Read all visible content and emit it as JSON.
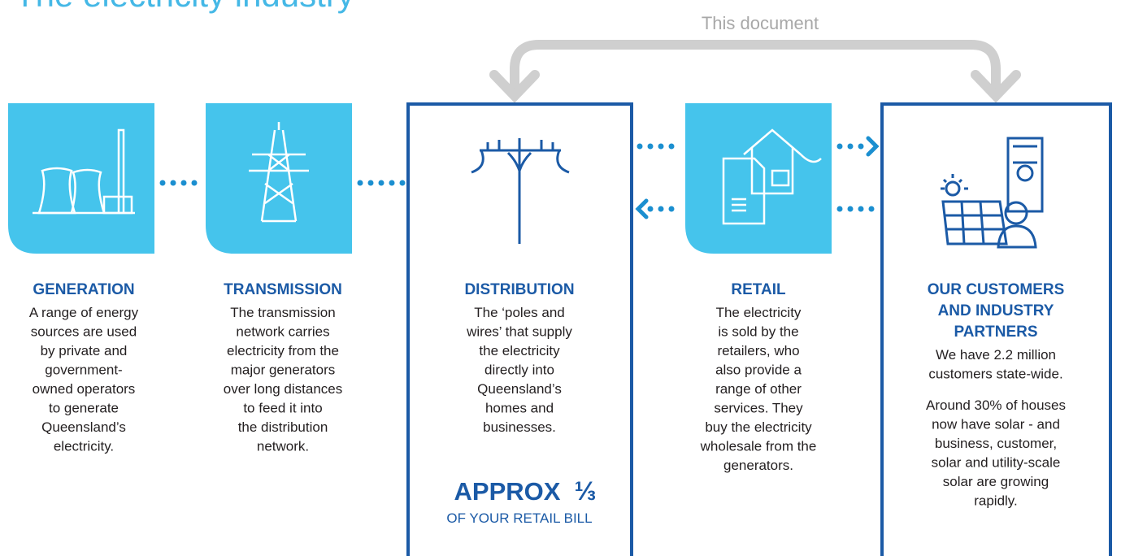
{
  "title": "The electricity industry",
  "scope_label": "This document",
  "stages": [
    {
      "heading": [
        "GENERATION"
      ],
      "paragraphs": [
        [
          "A range of energy",
          "sources are used",
          "by private and",
          "government-",
          "owned operators",
          "to generate",
          "Queensland’s",
          "electricity."
        ]
      ]
    },
    {
      "heading": [
        "TRANSMISSION"
      ],
      "paragraphs": [
        [
          "The transmission",
          "network carries",
          "electricity from the",
          "major generators",
          "over long distances",
          "to feed it into",
          "the distribution",
          "network."
        ]
      ]
    },
    {
      "heading": [
        "DISTRIBUTION"
      ],
      "paragraphs": [
        [
          "The ‘poles and",
          "wires’ that supply",
          "the electricity",
          "directly into",
          "Queensland’s",
          "homes and",
          "businesses."
        ]
      ]
    },
    {
      "heading": [
        "RETAIL"
      ],
      "paragraphs": [
        [
          "The electricity",
          "is sold by the",
          "retailers, who",
          "also provide a",
          "range of other",
          "services. They",
          "buy the electricity",
          "wholesale from the",
          "generators."
        ]
      ]
    },
    {
      "heading": [
        "OUR CUSTOMERS",
        "AND INDUSTRY",
        "PARTNERS"
      ],
      "paragraphs": [
        [
          "We have 2.2 million",
          "customers state-wide."
        ],
        [
          "Around 30% of houses",
          "now have solar - and",
          "business, customer,",
          "solar and utility-scale",
          "solar are growing",
          "rapidly."
        ]
      ]
    }
  ],
  "distribution_note": {
    "main": "APPROX",
    "fraction": "⅓",
    "sub": "OF YOUR RETAIL BILL"
  }
}
